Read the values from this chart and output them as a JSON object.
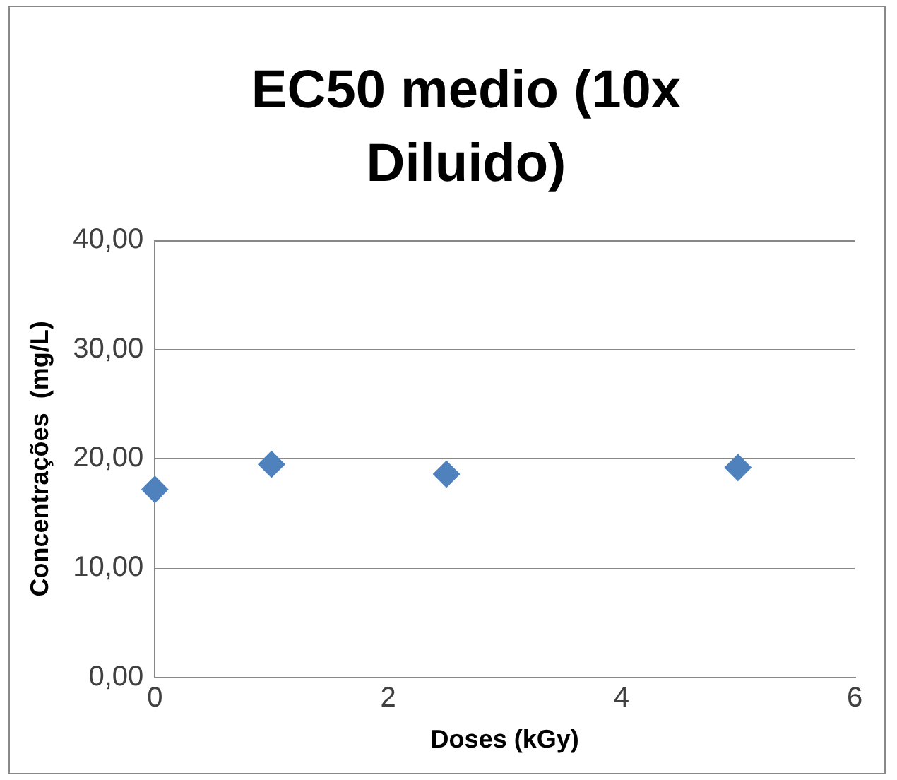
{
  "chart_data": {
    "type": "scatter",
    "title": "EC50 medio (10x Diluido)",
    "xlabel": "Doses (kGy)",
    "ylabel": "Concentrações  (mg/L)",
    "x": [
      0,
      1,
      2.5,
      5
    ],
    "series": [
      {
        "color": "#4f81bd",
        "values": [
          17.2,
          19.5,
          18.6,
          19.2
        ]
      }
    ],
    "xlim": [
      0,
      6
    ],
    "xticks": [
      0,
      2,
      4,
      6
    ],
    "ylim": [
      0,
      40
    ],
    "yticks": [
      {
        "value": 0,
        "label": "0,00"
      },
      {
        "value": 10,
        "label": "10,00"
      },
      {
        "value": 20,
        "label": "20,00"
      },
      {
        "value": 30,
        "label": "30,00"
      },
      {
        "value": 40,
        "label": "40,00"
      }
    ],
    "grid": "y",
    "legend": false,
    "marker": "diamond"
  }
}
